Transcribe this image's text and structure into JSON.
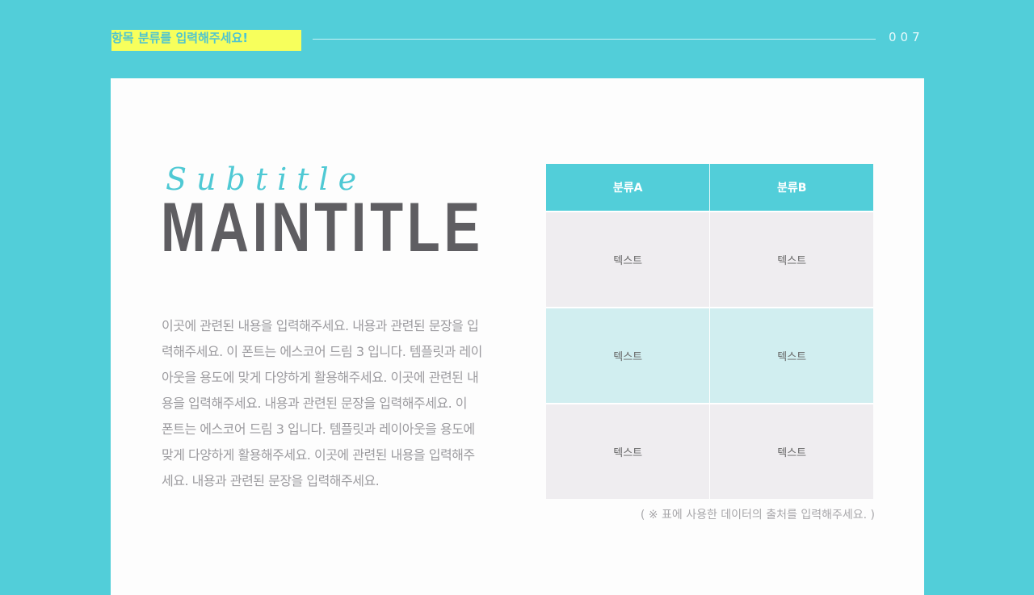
{
  "header": {
    "category": "항목 분류를 입력해주세요!",
    "page_number": "007"
  },
  "title": {
    "subtitle": "Subtitle",
    "main": "MAINTITLE"
  },
  "body_lines": [
    "이곳에 관련된 내용을 입력해주세요. 내용과 관련된 문장을 입",
    "력해주세요. 이 폰트는 에스코어 드림 3 입니다. 템플릿과 레이",
    "아웃을 용도에 맞게 다양하게 활용해주세요. 이곳에 관련된 내",
    "용을 입력해주세요. 내용과 관련된 문장을 입력해주세요. 이",
    "폰트는 에스코어 드림 3 입니다. 템플릿과 레이아웃을 용도에",
    "맞게 다양하게 활용해주세요. 이곳에 관련된 내용을 입력해주",
    "세요. 내용과 관련된 문장을 입력해주세요."
  ],
  "table": {
    "headers": [
      "분류A",
      "분류B"
    ],
    "rows": [
      [
        "텍스트",
        "텍스트"
      ],
      [
        "텍스트",
        "텍스트"
      ],
      [
        "텍스트",
        "텍스트"
      ]
    ]
  },
  "source_note": "( ※ 표에 사용한 데이터의 출처를 입력해주세요. )",
  "colors": {
    "accent": "#52ced9",
    "highlight": "#f7ff5c",
    "text": "#5f5e62"
  }
}
